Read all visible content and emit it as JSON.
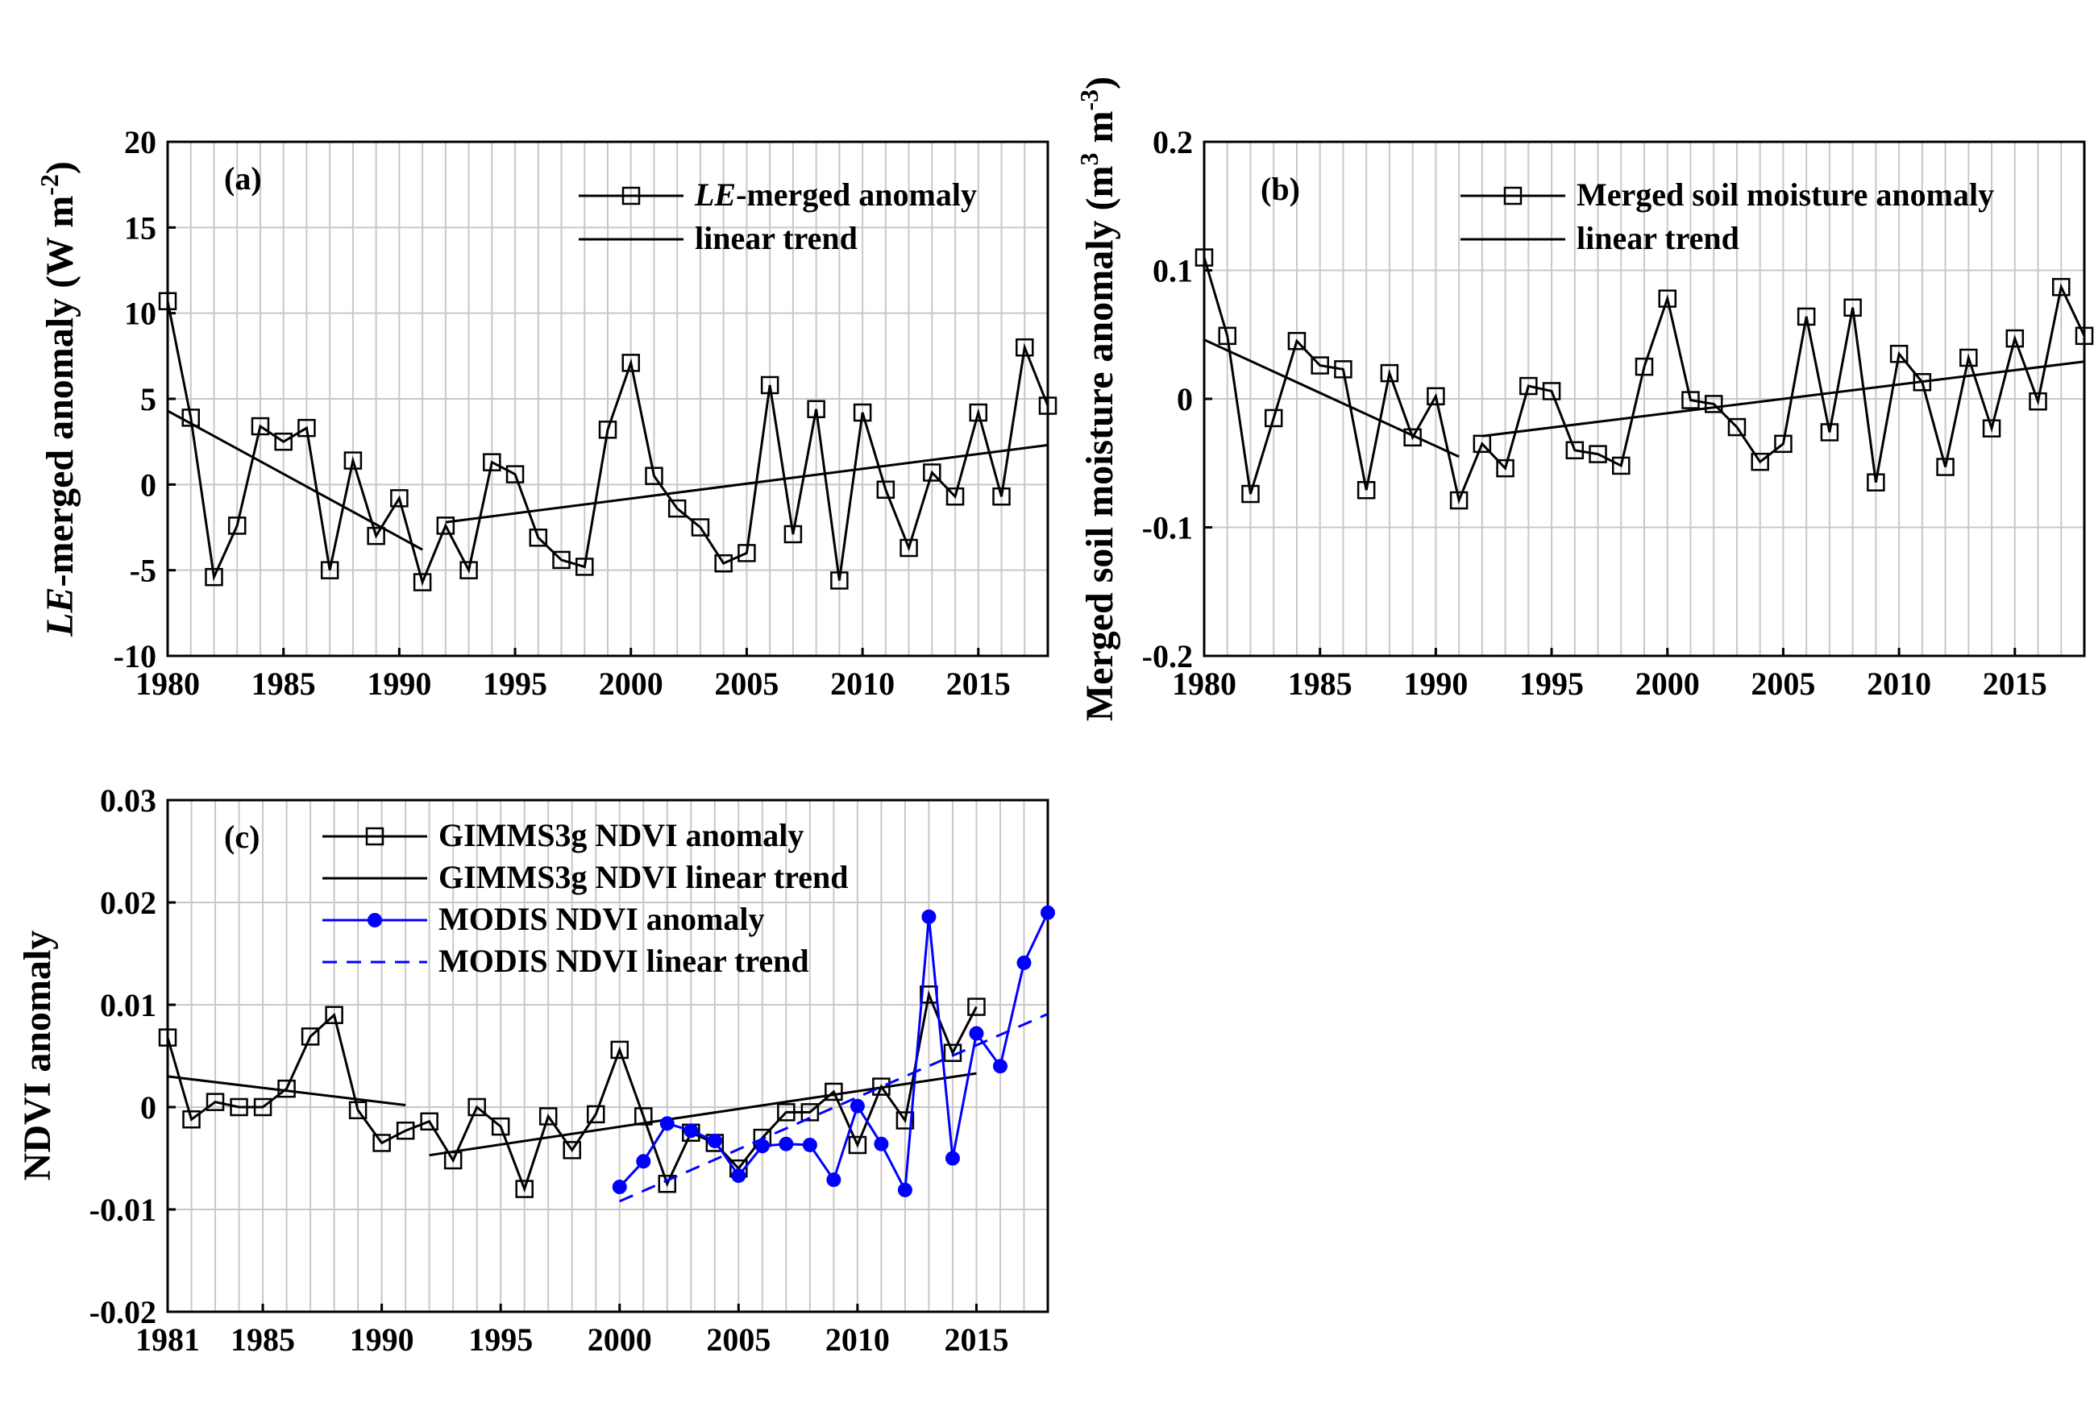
{
  "chart_data": [
    {
      "id": "a",
      "type": "line",
      "panel_label": "(a)",
      "ylabel": {
        "prefix": "LE",
        "suffix": "-merged anomaly (W m",
        "sup": "-2",
        "close": ")"
      },
      "xlabel": "",
      "xlim": [
        1980,
        2018
      ],
      "ylim": [
        -10,
        20
      ],
      "xticks": [
        1980,
        1985,
        1990,
        1995,
        2000,
        2005,
        2010,
        2015
      ],
      "xtick_labels": [
        "1980",
        "1985",
        "1990",
        "1995",
        "2000",
        "2005",
        "2010",
        "2015"
      ],
      "yticks": [
        -10,
        -5,
        0,
        5,
        10,
        15,
        20
      ],
      "ytick_labels": [
        "-10",
        "-5",
        "0",
        "5",
        "10",
        "15",
        "20"
      ],
      "legend": [
        {
          "prefix": "LE",
          "label": "-merged anomaly"
        },
        {
          "prefix": "",
          "label": "linear trend"
        }
      ],
      "series": [
        {
          "name": "LE-merged anomaly",
          "style": "line-square",
          "color": "#000000",
          "x": [
            1980,
            1981,
            1982,
            1983,
            1984,
            1985,
            1986,
            1987,
            1988,
            1989,
            1990,
            1991,
            1992,
            1993,
            1994,
            1995,
            1996,
            1997,
            1998,
            1999,
            2000,
            2001,
            2002,
            2003,
            2004,
            2005,
            2006,
            2007,
            2008,
            2009,
            2010,
            2011,
            2012,
            2013,
            2014,
            2015,
            2016,
            2017,
            2018
          ],
          "values": [
            10.7,
            3.9,
            -5.4,
            -2.4,
            3.4,
            2.5,
            3.3,
            -5.0,
            1.4,
            -3.0,
            -0.8,
            -5.7,
            -2.4,
            -5.0,
            1.3,
            0.6,
            -3.1,
            -4.4,
            -4.8,
            3.2,
            7.1,
            0.5,
            -1.4,
            -2.5,
            -4.6,
            -4.0,
            5.8,
            -2.9,
            4.4,
            -5.6,
            4.2,
            -0.3,
            -3.7,
            0.7,
            -0.7,
            4.2,
            -0.7,
            8.0,
            4.6
          ]
        },
        {
          "name": "linear trend 1980-1991",
          "style": "line",
          "color": "#000000",
          "x": [
            1980,
            1991
          ],
          "values": [
            4.3,
            -3.8
          ]
        },
        {
          "name": "linear trend 1992-2018",
          "style": "line",
          "color": "#000000",
          "x": [
            1992,
            2018
          ],
          "values": [
            -2.2,
            2.3
          ]
        }
      ]
    },
    {
      "id": "b",
      "type": "line",
      "panel_label": "(b)",
      "ylabel": {
        "prefix": "",
        "suffix": "Merged soil moisture anomaly (m",
        "sup": "3",
        "mid": " m",
        "sup2": "-3",
        "close": ")"
      },
      "xlabel": "",
      "xlim": [
        1980,
        2018
      ],
      "ylim": [
        -0.2,
        0.2
      ],
      "xticks": [
        1980,
        1985,
        1990,
        1995,
        2000,
        2005,
        2010,
        2015
      ],
      "xtick_labels": [
        "1980",
        "1985",
        "1990",
        "1995",
        "2000",
        "2005",
        "2010",
        "2015"
      ],
      "yticks": [
        -0.2,
        -0.1,
        0,
        0.1,
        0.2
      ],
      "ytick_labels": [
        "-0.2",
        "-0.1",
        "0",
        "0.1",
        "0.2"
      ],
      "legend": [
        {
          "prefix": "",
          "label": "Merged soil moisture anomaly"
        },
        {
          "prefix": "",
          "label": "linear trend"
        }
      ],
      "series": [
        {
          "name": "Merged soil moisture anomaly",
          "style": "line-square",
          "color": "#000000",
          "x": [
            1980,
            1981,
            1982,
            1983,
            1984,
            1985,
            1986,
            1987,
            1988,
            1989,
            1990,
            1991,
            1992,
            1993,
            1994,
            1995,
            1996,
            1997,
            1998,
            1999,
            2000,
            2001,
            2002,
            2003,
            2004,
            2005,
            2006,
            2007,
            2008,
            2009,
            2010,
            2011,
            2012,
            2013,
            2014,
            2015,
            2016,
            2017,
            2018
          ],
          "values": [
            0.11,
            0.049,
            -0.074,
            -0.015,
            0.045,
            0.026,
            0.023,
            -0.071,
            0.02,
            -0.03,
            0.002,
            -0.079,
            -0.035,
            -0.054,
            0.01,
            0.006,
            -0.04,
            -0.043,
            -0.052,
            0.025,
            0.078,
            -0.001,
            -0.004,
            -0.022,
            -0.049,
            -0.035,
            0.064,
            -0.026,
            0.071,
            -0.065,
            0.035,
            0.013,
            -0.053,
            0.032,
            -0.023,
            0.047,
            -0.002,
            0.087,
            0.049
          ]
        },
        {
          "name": "linear trend 1980-1991",
          "style": "line",
          "color": "#000000",
          "x": [
            1980,
            1991
          ],
          "values": [
            0.046,
            -0.045
          ]
        },
        {
          "name": "linear trend 1992-2018",
          "style": "line",
          "color": "#000000",
          "x": [
            1992,
            2018
          ],
          "values": [
            -0.029,
            0.029
          ]
        }
      ]
    },
    {
      "id": "c",
      "type": "line",
      "panel_label": "(c)",
      "ylabel": {
        "prefix": "",
        "suffix": "NDVI anomaly",
        "sup": "",
        "close": ""
      },
      "xlabel": "",
      "xlim": [
        1981,
        2018
      ],
      "ylim": [
        -0.02,
        0.03
      ],
      "xticks": [
        1981,
        1985,
        1990,
        1995,
        2000,
        2005,
        2010,
        2015
      ],
      "xtick_labels": [
        "1981",
        "1985",
        "1990",
        "1995",
        "2000",
        "2005",
        "2010",
        "2015"
      ],
      "yticks": [
        -0.02,
        -0.01,
        0,
        0.01,
        0.02,
        0.03
      ],
      "ytick_labels": [
        "-0.02",
        "-0.01",
        "0",
        "0.01",
        "0.02",
        "0.03"
      ],
      "legend": [
        {
          "prefix": "",
          "label": "GIMMS3g NDVI anomaly"
        },
        {
          "prefix": "",
          "label": "GIMMS3g NDVI linear trend"
        },
        {
          "prefix": "",
          "label": "MODIS NDVI anomaly"
        },
        {
          "prefix": "",
          "label": "MODIS NDVI linear trend"
        }
      ],
      "series": [
        {
          "name": "GIMMS3g NDVI anomaly",
          "style": "line-square",
          "color": "#000000",
          "x": [
            1981,
            1982,
            1983,
            1984,
            1985,
            1986,
            1987,
            1988,
            1989,
            1990,
            1991,
            1992,
            1993,
            1994,
            1995,
            1996,
            1997,
            1998,
            1999,
            2000,
            2001,
            2002,
            2003,
            2004,
            2005,
            2006,
            2007,
            2008,
            2009,
            2010,
            2011,
            2012,
            2013,
            2014,
            2015
          ],
          "values": [
            0.0068,
            -0.0012,
            0.0005,
            0.0,
            0.0,
            0.0018,
            0.0069,
            0.009,
            -0.0003,
            -0.0035,
            -0.0023,
            -0.0014,
            -0.0052,
            0.0,
            -0.0019,
            -0.008,
            -0.0009,
            -0.0042,
            -0.0007,
            0.0056,
            -0.0009,
            -0.0075,
            -0.0025,
            -0.0035,
            -0.006,
            -0.003,
            -0.0005,
            -0.0005,
            0.0015,
            -0.0037,
            0.002,
            -0.0013,
            0.011,
            0.0053,
            0.0098
          ]
        },
        {
          "name": "GIMMS3g NDVI linear trend 1981-1991",
          "style": "line",
          "color": "#000000",
          "x": [
            1981,
            1991
          ],
          "values": [
            0.003,
            0.0002
          ]
        },
        {
          "name": "GIMMS3g NDVI linear trend 1992-2015",
          "style": "line",
          "color": "#000000",
          "x": [
            1992,
            2015
          ],
          "values": [
            -0.0047,
            0.0033
          ]
        },
        {
          "name": "MODIS NDVI anomaly",
          "style": "line-dot",
          "color": "#0000ff",
          "x": [
            2000,
            2001,
            2002,
            2003,
            2004,
            2005,
            2006,
            2007,
            2008,
            2009,
            2010,
            2011,
            2012,
            2013,
            2014,
            2015,
            2016,
            2017,
            2018
          ],
          "values": [
            -0.0078,
            -0.0053,
            -0.0016,
            -0.0023,
            -0.0033,
            -0.0067,
            -0.0038,
            -0.0036,
            -0.0037,
            -0.0071,
            0.0001,
            -0.0036,
            -0.0081,
            0.0186,
            -0.005,
            0.0072,
            0.004,
            0.0141,
            0.019
          ]
        },
        {
          "name": "MODIS NDVI linear trend",
          "style": "dashed",
          "color": "#0000ff",
          "x": [
            2000,
            2018
          ],
          "values": [
            -0.0092,
            0.0091
          ]
        }
      ]
    }
  ]
}
